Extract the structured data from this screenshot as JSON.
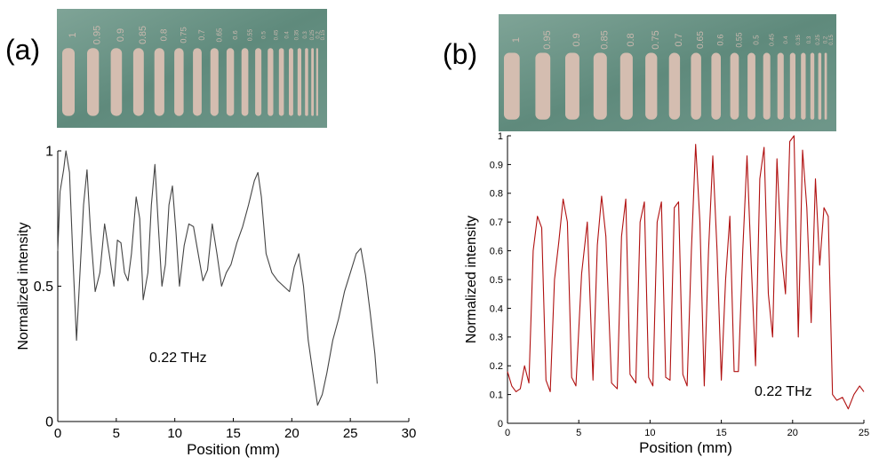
{
  "panels": {
    "a": {
      "label": "(a)"
    },
    "b": {
      "label": "(b)"
    }
  },
  "target_labels": [
    "1",
    "0.95",
    "0.9",
    "0.85",
    "0.8",
    "0.75",
    "0.7",
    "0.65",
    "0.6",
    "0.55",
    "0.5",
    "0.45",
    "0.4",
    "0.35",
    "0.3",
    "0.25",
    "0.2",
    "0.15"
  ],
  "colors": {
    "photo_bg": "#5f8a7c",
    "photo_bar": "#d4bdb0",
    "line_a": "#444444",
    "line_b": "#b01010"
  },
  "chart_data": [
    {
      "type": "line",
      "panel": "(a)",
      "title": "",
      "xlabel": "Position (mm)",
      "ylabel": "Normalized intensity",
      "annotation": "0.22 THz",
      "xlim": [
        0,
        30
      ],
      "ylim": [
        0,
        1
      ],
      "x_ticks": [
        "0",
        "5",
        "10",
        "15",
        "20",
        "25",
        "30"
      ],
      "y_ticks": [
        "0",
        "0.5",
        "1"
      ],
      "grid": false,
      "x": [
        0,
        0.2,
        0.5,
        0.7,
        1.0,
        1.3,
        1.6,
        1.9,
        2.2,
        2.5,
        2.8,
        3.2,
        3.6,
        4.0,
        4.4,
        4.8,
        5.1,
        5.4,
        5.7,
        6.0,
        6.3,
        6.7,
        7.0,
        7.3,
        7.7,
        8.0,
        8.3,
        8.6,
        8.9,
        9.2,
        9.5,
        9.8,
        10.1,
        10.4,
        10.8,
        11.2,
        11.6,
        12.0,
        12.4,
        12.8,
        13.2,
        13.6,
        14.0,
        14.4,
        14.8,
        15.3,
        15.8,
        16.3,
        16.8,
        17.1,
        17.4,
        17.8,
        18.3,
        18.8,
        19.3,
        19.8,
        20.2,
        20.6,
        21.0,
        21.4,
        21.8,
        22.2,
        22.6,
        23.0,
        23.5,
        24.0,
        24.5,
        25.0,
        25.5,
        25.9,
        26.3,
        26.7,
        27.1,
        27.3
      ],
      "values": [
        0.63,
        0.85,
        0.93,
        1.0,
        0.92,
        0.6,
        0.3,
        0.55,
        0.8,
        0.93,
        0.7,
        0.48,
        0.55,
        0.73,
        0.62,
        0.5,
        0.67,
        0.66,
        0.55,
        0.52,
        0.62,
        0.83,
        0.75,
        0.45,
        0.55,
        0.8,
        0.95,
        0.72,
        0.5,
        0.58,
        0.8,
        0.87,
        0.7,
        0.5,
        0.65,
        0.73,
        0.72,
        0.62,
        0.52,
        0.56,
        0.73,
        0.62,
        0.5,
        0.55,
        0.58,
        0.66,
        0.72,
        0.8,
        0.89,
        0.92,
        0.83,
        0.62,
        0.55,
        0.52,
        0.5,
        0.48,
        0.57,
        0.62,
        0.5,
        0.3,
        0.18,
        0.06,
        0.1,
        0.18,
        0.3,
        0.38,
        0.48,
        0.55,
        0.62,
        0.64,
        0.54,
        0.4,
        0.25,
        0.14
      ]
    },
    {
      "type": "line",
      "panel": "(b)",
      "title": "",
      "xlabel": "Position (mm)",
      "ylabel": "Normalized intensity",
      "annotation": "0.22 THz",
      "xlim": [
        0,
        25
      ],
      "ylim": [
        0,
        1
      ],
      "x_ticks": [
        "0",
        "5",
        "10",
        "15",
        "20",
        "25"
      ],
      "y_ticks": [
        "0",
        "0.1",
        "0.2",
        "0.3",
        "0.4",
        "0.5",
        "0.6",
        "0.7",
        "0.8",
        "0.9",
        "1"
      ],
      "grid": false,
      "x": [
        0,
        0.3,
        0.6,
        0.9,
        1.2,
        1.5,
        1.8,
        2.1,
        2.4,
        2.7,
        3.0,
        3.3,
        3.6,
        3.9,
        4.2,
        4.5,
        4.8,
        5.2,
        5.6,
        6.0,
        6.3,
        6.6,
        6.9,
        7.3,
        7.7,
        8.0,
        8.3,
        8.6,
        9.0,
        9.3,
        9.6,
        9.9,
        10.2,
        10.5,
        10.8,
        11.1,
        11.4,
        11.7,
        12.0,
        12.3,
        12.6,
        12.9,
        13.2,
        13.5,
        13.8,
        14.1,
        14.4,
        14.7,
        15.0,
        15.3,
        15.6,
        15.9,
        16.2,
        16.5,
        16.8,
        17.1,
        17.4,
        17.7,
        18.0,
        18.3,
        18.6,
        18.9,
        19.2,
        19.5,
        19.8,
        20.1,
        20.4,
        20.7,
        21.0,
        21.3,
        21.6,
        21.9,
        22.2,
        22.5,
        22.8,
        23.1,
        23.5,
        23.9,
        24.3,
        24.7,
        25.0
      ],
      "values": [
        0.18,
        0.13,
        0.11,
        0.12,
        0.2,
        0.14,
        0.6,
        0.72,
        0.68,
        0.15,
        0.11,
        0.5,
        0.63,
        0.78,
        0.7,
        0.16,
        0.13,
        0.52,
        0.7,
        0.15,
        0.62,
        0.79,
        0.65,
        0.14,
        0.12,
        0.65,
        0.78,
        0.17,
        0.14,
        0.7,
        0.77,
        0.16,
        0.13,
        0.7,
        0.77,
        0.16,
        0.15,
        0.75,
        0.77,
        0.17,
        0.13,
        0.6,
        0.97,
        0.7,
        0.13,
        0.6,
        0.93,
        0.6,
        0.15,
        0.5,
        0.72,
        0.18,
        0.18,
        0.6,
        0.93,
        0.55,
        0.2,
        0.85,
        0.96,
        0.45,
        0.3,
        0.92,
        0.6,
        0.45,
        0.98,
        1.0,
        0.3,
        0.95,
        0.75,
        0.35,
        0.85,
        0.55,
        0.75,
        0.72,
        0.1,
        0.08,
        0.09,
        0.05,
        0.1,
        0.13,
        0.11
      ]
    }
  ]
}
